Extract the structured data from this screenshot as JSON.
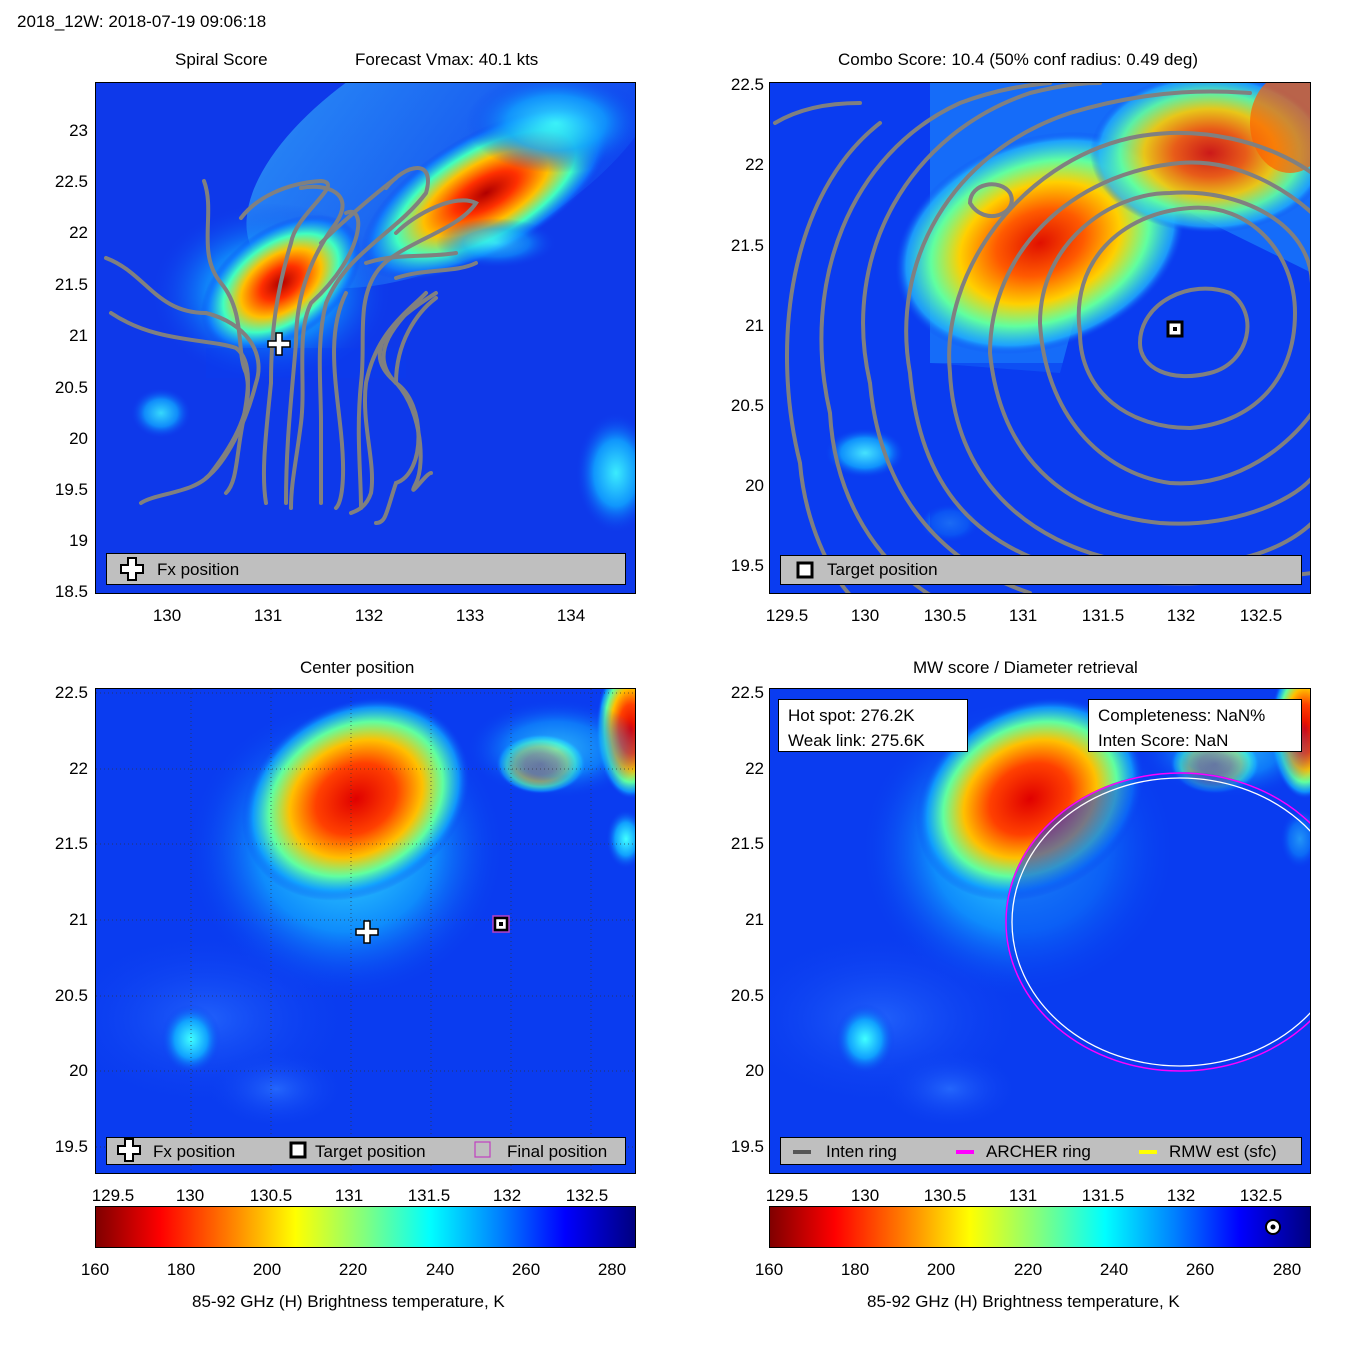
{
  "header": {
    "title": "2018_12W: 2018-07-19 09:06:18"
  },
  "panels": {
    "spiral": {
      "title_left": "Spiral Score",
      "title_right": "Forecast Vmax: 40.1 kts",
      "xticks": [
        "130",
        "131",
        "132",
        "133",
        "134"
      ],
      "yticks": [
        "23",
        "22.5",
        "22",
        "21.5",
        "21",
        "20.5",
        "20",
        "19.5",
        "19",
        "18.5"
      ],
      "legend": {
        "fx_label": "Fx position"
      }
    },
    "combo": {
      "title": "Combo Score: 10.4  (50% conf radius: 0.49 deg)",
      "xticks": [
        "129.5",
        "130",
        "130.5",
        "131",
        "131.5",
        "132",
        "132.5"
      ],
      "yticks": [
        "22.5",
        "22",
        "21.5",
        "21",
        "20.5",
        "20",
        "19.5"
      ],
      "legend": {
        "target_label": "Target position"
      }
    },
    "center": {
      "title": "Center position",
      "xticks": [
        "129.5",
        "130",
        "130.5",
        "131",
        "131.5",
        "132",
        "132.5"
      ],
      "yticks": [
        "22.5",
        "22",
        "21.5",
        "21",
        "20.5",
        "20",
        "19.5"
      ],
      "legend": {
        "fx_label": "Fx position",
        "target_label": "Target position",
        "final_label": "Final position"
      },
      "colorbar": {
        "ticks": [
          "160",
          "180",
          "200",
          "220",
          "240",
          "260",
          "280"
        ],
        "label": "85-92 GHz (H) Brightness temperature, K"
      }
    },
    "mw": {
      "title": "MW score / Diameter retrieval",
      "xticks": [
        "129.5",
        "130",
        "130.5",
        "131",
        "131.5",
        "132",
        "132.5"
      ],
      "yticks": [
        "22.5",
        "22",
        "21.5",
        "21",
        "20.5",
        "20",
        "19.5"
      ],
      "info_left": {
        "hot_spot": "Hot spot: 276.2K",
        "weak_link": "Weak link: 275.6K"
      },
      "info_right": {
        "completeness": "Completeness: NaN%",
        "inten_score": "Inten Score: NaN"
      },
      "legend": {
        "inten": "Inten ring",
        "archer": "ARCHER ring",
        "rmw": "RMW est (sfc)"
      },
      "colorbar": {
        "ticks": [
          "160",
          "180",
          "200",
          "220",
          "240",
          "260",
          "280"
        ],
        "label": "85-92 GHz (H) Brightness temperature, K"
      }
    }
  },
  "colors": {
    "contour": "#808080",
    "background_field": "#0a3cf0",
    "archer_ring": "#ff00ff",
    "inten_ring": "#555555",
    "rmw_ring": "#ffff00",
    "legend_bg": "#bfbfbf"
  },
  "chart_data": [
    {
      "type": "heatmap",
      "title": "Spiral Score",
      "subtitle": "Forecast Vmax: 40.1 kts",
      "xlim": [
        129.3,
        134.6
      ],
      "ylim": [
        18.5,
        23.5
      ],
      "fx_position": [
        131.1,
        20.95
      ],
      "legend": [
        "Fx position"
      ]
    },
    {
      "type": "heatmap",
      "title": "Combo Score: 10.4  (50% conf radius: 0.49 deg)",
      "xlim": [
        129.4,
        132.8
      ],
      "ylim": [
        19.35,
        22.5
      ],
      "target_position": [
        131.95,
        20.98
      ],
      "conf_radius_deg": 0.49,
      "combo_score": 10.4,
      "legend": [
        "Target position"
      ]
    },
    {
      "type": "heatmap",
      "title": "Center position",
      "xlim": [
        129.4,
        132.8
      ],
      "ylim": [
        19.35,
        22.5
      ],
      "fx_position": [
        131.1,
        20.92
      ],
      "target_position": [
        131.95,
        20.97
      ],
      "final_position": [
        131.95,
        20.97
      ],
      "legend": [
        "Fx position",
        "Target position",
        "Final position"
      ],
      "colorbar": {
        "label": "85-92 GHz (H) Brightness temperature, K",
        "range": [
          160,
          285
        ]
      }
    },
    {
      "type": "heatmap",
      "title": "MW score / Diameter retrieval",
      "xlim": [
        129.4,
        132.8
      ],
      "ylim": [
        19.35,
        22.5
      ],
      "hot_spot_K": 276.2,
      "weak_link_K": 275.6,
      "completeness": "NaN%",
      "inten_score": "NaN",
      "archer_ring": {
        "center": [
          131.95,
          20.85
        ],
        "radius_deg": 0.98
      },
      "rmw_ring": {
        "center": [
          131.95,
          20.85
        ],
        "radius_deg": 0.95
      },
      "legend": [
        "Inten ring",
        "ARCHER ring",
        "RMW est (sfc)"
      ],
      "colorbar": {
        "label": "85-92 GHz (H) Brightness temperature, K",
        "range": [
          160,
          285
        ]
      }
    }
  ]
}
